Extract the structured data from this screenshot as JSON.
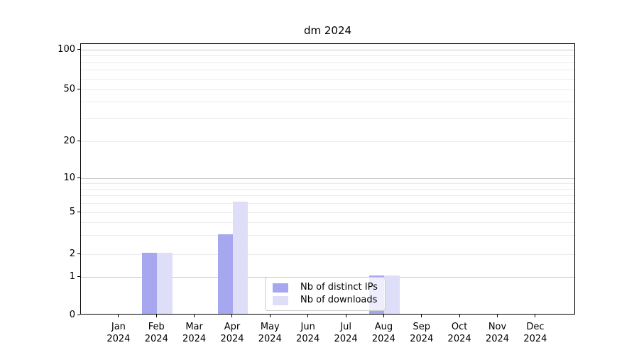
{
  "title": "dm 2024",
  "chart_data": {
    "type": "bar",
    "title": "dm 2024",
    "categories": [
      "Jan 2024",
      "Feb 2024",
      "Mar 2024",
      "Apr 2024",
      "May 2024",
      "Jun 2024",
      "Jul 2024",
      "Aug 2024",
      "Sep 2024",
      "Oct 2024",
      "Nov 2024",
      "Dec 2024"
    ],
    "series": [
      {
        "name": "Nb of distinct IPs",
        "color": "#a7a7ef",
        "values": [
          0,
          2,
          0,
          3,
          0,
          0,
          0,
          1,
          0,
          0,
          0,
          0
        ]
      },
      {
        "name": "Nb of downloads",
        "color": "#dedef8",
        "values": [
          0,
          2,
          0,
          6,
          0,
          0,
          0,
          1,
          0,
          0,
          0,
          0
        ]
      }
    ],
    "yticks": [
      0,
      1,
      2,
      5,
      10,
      20,
      50,
      100
    ],
    "ylim": [
      0,
      110
    ],
    "xlabel": "",
    "ylabel": "",
    "yscale": "log-like (linear 0-1 segment)",
    "grid": true,
    "legend_position": "lower center",
    "colors": {
      "major_grid": "#c9c9c9",
      "minor_grid": "#ebebeb",
      "spine": "#000000",
      "text": "#000000",
      "background": "#ffffff"
    }
  }
}
